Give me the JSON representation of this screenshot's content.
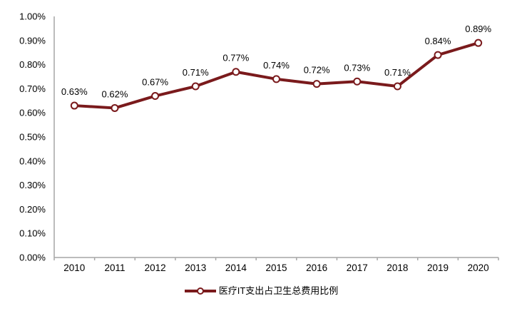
{
  "chart_data": {
    "type": "line",
    "title": "",
    "categories": [
      "2010",
      "2011",
      "2012",
      "2013",
      "2014",
      "2015",
      "2016",
      "2017",
      "2018",
      "2019",
      "2020"
    ],
    "series": [
      {
        "name": "医疗IT支出占卫生总费用比例",
        "values": [
          0.63,
          0.62,
          0.67,
          0.71,
          0.77,
          0.74,
          0.72,
          0.73,
          0.71,
          0.84,
          0.89
        ]
      }
    ],
    "data_labels": [
      "0.63%",
      "0.62%",
      "0.67%",
      "0.71%",
      "0.77%",
      "0.74%",
      "0.72%",
      "0.73%",
      "0.71%",
      "0.84%",
      "0.89%"
    ],
    "unit": "%",
    "ylim": [
      0,
      1.0
    ],
    "y_axis": {
      "ticks": [
        "1.00%",
        "0.90%",
        "0.80%",
        "0.70%",
        "0.60%",
        "0.50%",
        "0.40%",
        "0.30%",
        "0.20%",
        "0.10%",
        "0.00%"
      ]
    },
    "xlabel": "",
    "ylabel": "",
    "grid": false,
    "legend_position": "bottom",
    "colors": {
      "line": "#7A1A1C",
      "marker_fill": "#FFFFFF",
      "axis": "#A6A6A6",
      "text": "#000000"
    }
  }
}
